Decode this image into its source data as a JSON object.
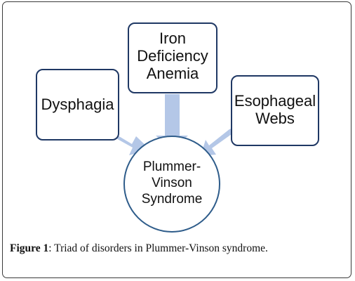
{
  "diagram": {
    "center": {
      "lines": [
        "Plummer-",
        "Vinson",
        "Syndrome"
      ]
    },
    "nodes": [
      {
        "id": "dysphagia",
        "lines": [
          "Dysphagia"
        ]
      },
      {
        "id": "iron",
        "lines": [
          "Iron",
          "Deficiency",
          "Anemia"
        ]
      },
      {
        "id": "webs",
        "lines": [
          "Esophageal",
          "Webs"
        ]
      }
    ]
  },
  "caption": {
    "label": "Figure 1",
    "separator": ":",
    "text": " Triad of disorders in Plummer-Vinson syndrome."
  },
  "colors": {
    "box_border": "#1f3864",
    "circle_border": "#2e5c8a",
    "arrow_fill": "#b4c7e7"
  }
}
